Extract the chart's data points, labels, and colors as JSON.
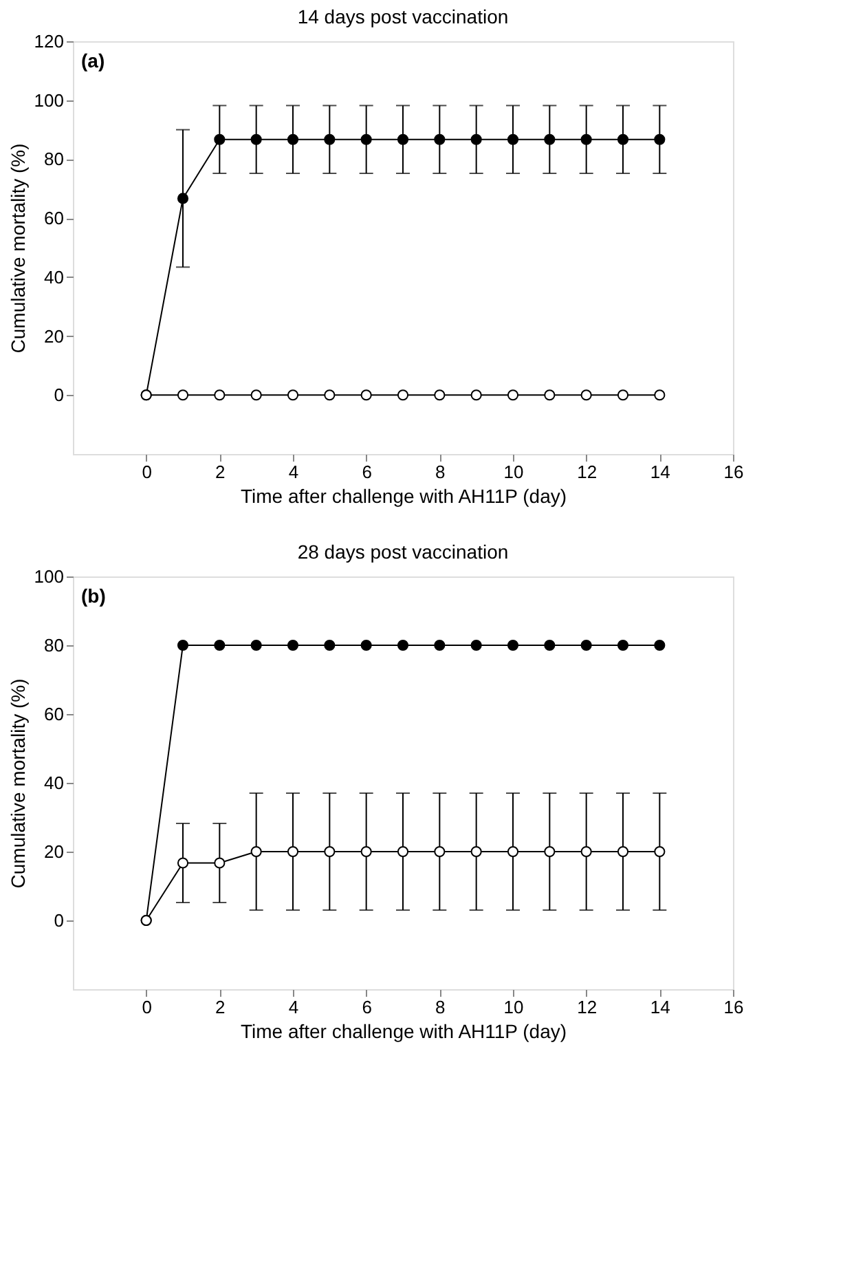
{
  "chart_data": [
    {
      "type": "line",
      "title": "14 days post vaccination",
      "xlabel": "Time after challenge with AH11P (day)",
      "ylabel": "Cumulative mortality (%)",
      "annotations": [
        "(a)"
      ],
      "x": [
        0,
        1,
        2,
        3,
        4,
        5,
        6,
        7,
        8,
        9,
        10,
        11,
        12,
        13,
        14
      ],
      "xlim": [
        -2,
        16
      ],
      "xticks": [
        0,
        2,
        4,
        6,
        8,
        10,
        12,
        14,
        16
      ],
      "ylim": [
        -20,
        120
      ],
      "yticks": [
        0,
        20,
        40,
        60,
        80,
        100,
        120
      ],
      "grid": false,
      "marker": "circle",
      "line_style": "solid",
      "series": [
        {
          "color": "#000000",
          "values": [
            0,
            66.7,
            86.7,
            86.7,
            86.7,
            86.7,
            86.7,
            86.7,
            86.7,
            86.7,
            86.7,
            86.7,
            86.7,
            86.7,
            86.7
          ],
          "errors": [
            null,
            23.3,
            11.5,
            11.5,
            11.5,
            11.5,
            11.5,
            11.5,
            11.5,
            11.5,
            11.5,
            11.5,
            11.5,
            11.5,
            11.5
          ]
        },
        {
          "color": "#ffffff",
          "values": [
            0,
            0,
            0,
            0,
            0,
            0,
            0,
            0,
            0,
            0,
            0,
            0,
            0,
            0,
            0
          ]
        }
      ]
    },
    {
      "type": "line",
      "title": "28 days post vaccination",
      "xlabel": "Time after challenge with AH11P (day)",
      "ylabel": "Cumulative mortality (%)",
      "annotations": [
        "(b)"
      ],
      "x": [
        0,
        1,
        2,
        3,
        4,
        5,
        6,
        7,
        8,
        9,
        10,
        11,
        12,
        13,
        14
      ],
      "xlim": [
        -2,
        16
      ],
      "xticks": [
        0,
        2,
        4,
        6,
        8,
        10,
        12,
        14,
        16
      ],
      "ylim": [
        -20,
        100
      ],
      "yticks": [
        0,
        20,
        40,
        60,
        80,
        100
      ],
      "grid": false,
      "marker": "circle",
      "line_style": "solid",
      "series": [
        {
          "color": "#000000",
          "values": [
            0,
            80,
            80,
            80,
            80,
            80,
            80,
            80,
            80,
            80,
            80,
            80,
            80,
            80,
            80
          ]
        },
        {
          "color": "#ffffff",
          "values": [
            0,
            16.7,
            16.7,
            20,
            20,
            20,
            20,
            20,
            20,
            20,
            20,
            20,
            20,
            20,
            20
          ],
          "errors": [
            null,
            11.5,
            11.5,
            17,
            17,
            17,
            17,
            17,
            17,
            17,
            17,
            17,
            17,
            17,
            17
          ]
        }
      ]
    }
  ]
}
